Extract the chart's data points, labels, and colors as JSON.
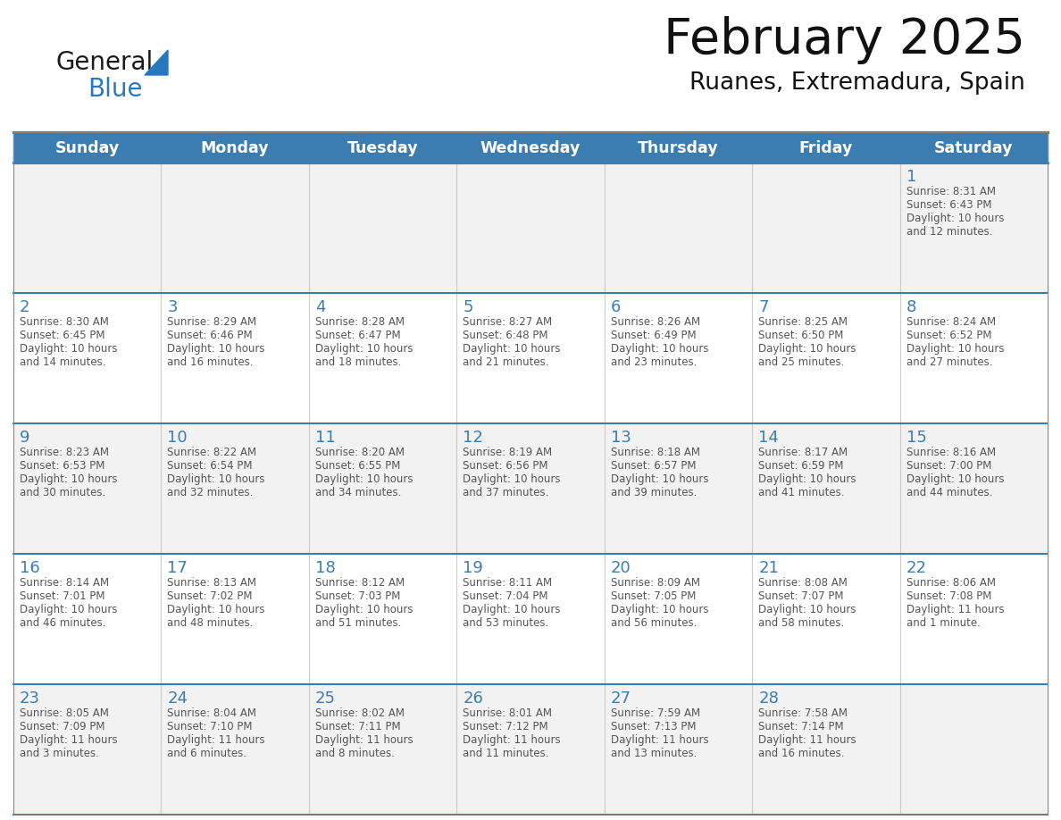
{
  "title": "February 2025",
  "subtitle": "Ruanes, Extremadura, Spain",
  "header_bg": "#3c7db1",
  "header_text_color": "#ffffff",
  "day_names": [
    "Sunday",
    "Monday",
    "Tuesday",
    "Wednesday",
    "Thursday",
    "Friday",
    "Saturday"
  ],
  "cell_bg_odd": "#f2f2f2",
  "cell_bg_even": "#ffffff",
  "divider_color": "#3c7db1",
  "text_color": "#555555",
  "day_num_color": "#3c7db1",
  "logo_general_color": "#1a1a1a",
  "logo_blue_color": "#2878be",
  "days": [
    {
      "date": 1,
      "col": 6,
      "row": 0,
      "sunrise": "8:31 AM",
      "sunset": "6:43 PM",
      "daylight": "10 hours\nand 12 minutes."
    },
    {
      "date": 2,
      "col": 0,
      "row": 1,
      "sunrise": "8:30 AM",
      "sunset": "6:45 PM",
      "daylight": "10 hours\nand 14 minutes."
    },
    {
      "date": 3,
      "col": 1,
      "row": 1,
      "sunrise": "8:29 AM",
      "sunset": "6:46 PM",
      "daylight": "10 hours\nand 16 minutes."
    },
    {
      "date": 4,
      "col": 2,
      "row": 1,
      "sunrise": "8:28 AM",
      "sunset": "6:47 PM",
      "daylight": "10 hours\nand 18 minutes."
    },
    {
      "date": 5,
      "col": 3,
      "row": 1,
      "sunrise": "8:27 AM",
      "sunset": "6:48 PM",
      "daylight": "10 hours\nand 21 minutes."
    },
    {
      "date": 6,
      "col": 4,
      "row": 1,
      "sunrise": "8:26 AM",
      "sunset": "6:49 PM",
      "daylight": "10 hours\nand 23 minutes."
    },
    {
      "date": 7,
      "col": 5,
      "row": 1,
      "sunrise": "8:25 AM",
      "sunset": "6:50 PM",
      "daylight": "10 hours\nand 25 minutes."
    },
    {
      "date": 8,
      "col": 6,
      "row": 1,
      "sunrise": "8:24 AM",
      "sunset": "6:52 PM",
      "daylight": "10 hours\nand 27 minutes."
    },
    {
      "date": 9,
      "col": 0,
      "row": 2,
      "sunrise": "8:23 AM",
      "sunset": "6:53 PM",
      "daylight": "10 hours\nand 30 minutes."
    },
    {
      "date": 10,
      "col": 1,
      "row": 2,
      "sunrise": "8:22 AM",
      "sunset": "6:54 PM",
      "daylight": "10 hours\nand 32 minutes."
    },
    {
      "date": 11,
      "col": 2,
      "row": 2,
      "sunrise": "8:20 AM",
      "sunset": "6:55 PM",
      "daylight": "10 hours\nand 34 minutes."
    },
    {
      "date": 12,
      "col": 3,
      "row": 2,
      "sunrise": "8:19 AM",
      "sunset": "6:56 PM",
      "daylight": "10 hours\nand 37 minutes."
    },
    {
      "date": 13,
      "col": 4,
      "row": 2,
      "sunrise": "8:18 AM",
      "sunset": "6:57 PM",
      "daylight": "10 hours\nand 39 minutes."
    },
    {
      "date": 14,
      "col": 5,
      "row": 2,
      "sunrise": "8:17 AM",
      "sunset": "6:59 PM",
      "daylight": "10 hours\nand 41 minutes."
    },
    {
      "date": 15,
      "col": 6,
      "row": 2,
      "sunrise": "8:16 AM",
      "sunset": "7:00 PM",
      "daylight": "10 hours\nand 44 minutes."
    },
    {
      "date": 16,
      "col": 0,
      "row": 3,
      "sunrise": "8:14 AM",
      "sunset": "7:01 PM",
      "daylight": "10 hours\nand 46 minutes."
    },
    {
      "date": 17,
      "col": 1,
      "row": 3,
      "sunrise": "8:13 AM",
      "sunset": "7:02 PM",
      "daylight": "10 hours\nand 48 minutes."
    },
    {
      "date": 18,
      "col": 2,
      "row": 3,
      "sunrise": "8:12 AM",
      "sunset": "7:03 PM",
      "daylight": "10 hours\nand 51 minutes."
    },
    {
      "date": 19,
      "col": 3,
      "row": 3,
      "sunrise": "8:11 AM",
      "sunset": "7:04 PM",
      "daylight": "10 hours\nand 53 minutes."
    },
    {
      "date": 20,
      "col": 4,
      "row": 3,
      "sunrise": "8:09 AM",
      "sunset": "7:05 PM",
      "daylight": "10 hours\nand 56 minutes."
    },
    {
      "date": 21,
      "col": 5,
      "row": 3,
      "sunrise": "8:08 AM",
      "sunset": "7:07 PM",
      "daylight": "10 hours\nand 58 minutes."
    },
    {
      "date": 22,
      "col": 6,
      "row": 3,
      "sunrise": "8:06 AM",
      "sunset": "7:08 PM",
      "daylight": "11 hours\nand 1 minute."
    },
    {
      "date": 23,
      "col": 0,
      "row": 4,
      "sunrise": "8:05 AM",
      "sunset": "7:09 PM",
      "daylight": "11 hours\nand 3 minutes."
    },
    {
      "date": 24,
      "col": 1,
      "row": 4,
      "sunrise": "8:04 AM",
      "sunset": "7:10 PM",
      "daylight": "11 hours\nand 6 minutes."
    },
    {
      "date": 25,
      "col": 2,
      "row": 4,
      "sunrise": "8:02 AM",
      "sunset": "7:11 PM",
      "daylight": "11 hours\nand 8 minutes."
    },
    {
      "date": 26,
      "col": 3,
      "row": 4,
      "sunrise": "8:01 AM",
      "sunset": "7:12 PM",
      "daylight": "11 hours\nand 11 minutes."
    },
    {
      "date": 27,
      "col": 4,
      "row": 4,
      "sunrise": "7:59 AM",
      "sunset": "7:13 PM",
      "daylight": "11 hours\nand 13 minutes."
    },
    {
      "date": 28,
      "col": 5,
      "row": 4,
      "sunrise": "7:58 AM",
      "sunset": "7:14 PM",
      "daylight": "11 hours\nand 16 minutes."
    }
  ]
}
